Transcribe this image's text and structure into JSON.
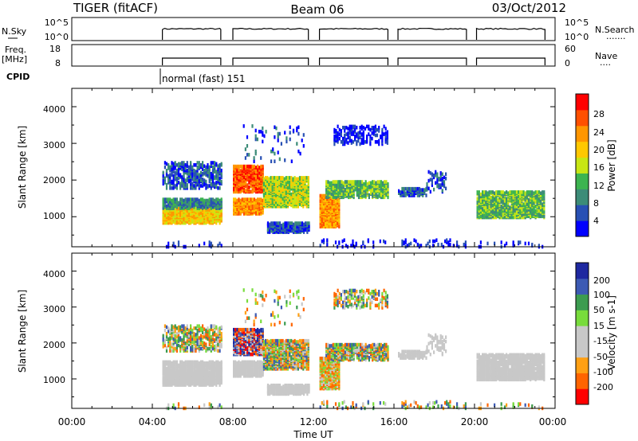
{
  "header": {
    "radar_title": "TIGER (fitACF)",
    "beam_title": "Beam 06",
    "date_title": "03/Oct/2012"
  },
  "strip_panels": {
    "nsky": {
      "label": "N.Sky",
      "left_ticks": [
        "10^5",
        "10^0"
      ],
      "right_ticks": [
        "10^5",
        "10^0"
      ],
      "right_label": "N.Search",
      "right_marker": "......."
    },
    "freq": {
      "label_line1": "Freq.",
      "label_line2": "[MHz]",
      "left_ticks": [
        "18",
        "8"
      ],
      "right_ticks": [
        "60",
        "0"
      ],
      "right_label": "Nave",
      "right_marker": "...."
    },
    "cpid": {
      "label": "CPID",
      "mode_text": "normal (fast) 151"
    }
  },
  "x_axis": {
    "label": "Time UT",
    "ticks": [
      "00:00",
      "04:00",
      "08:00",
      "12:00",
      "16:00",
      "20:00",
      "00:00"
    ],
    "range_hours": [
      0,
      24
    ]
  },
  "colors": {
    "power": [
      "#0000ff",
      "#2850b4",
      "#3c8c78",
      "#3cb450",
      "#c8e614",
      "#ffc800",
      "#ff9600",
      "#ff5000",
      "#ff0000"
    ],
    "velocity": [
      "#ff0000",
      "#ff6400",
      "#ffa014",
      "#c8c8c8",
      "#c8c8c8",
      "#78dc3c",
      "#3c9c50",
      "#3c5ab4",
      "#1e28a0"
    ]
  },
  "chart_data": [
    {
      "type": "heatmap",
      "name": "power-panel",
      "ylabel": "Slant Range [km]",
      "yticks": [
        "1000",
        "2000",
        "3000",
        "4000"
      ],
      "ylim": [
        180,
        4500
      ],
      "colorbar": {
        "label": "Power [dB]",
        "ticks": [
          "4",
          "8",
          "12",
          "16",
          "20",
          "24",
          "28"
        ],
        "range": [
          0,
          32
        ]
      },
      "observing_windows_hours": [
        [
          4.5,
          7.4
        ],
        [
          8.0,
          11.75
        ],
        [
          12.3,
          15.7
        ],
        [
          16.2,
          19.6
        ],
        [
          20.1,
          23.5
        ]
      ]
    },
    {
      "type": "heatmap",
      "name": "velocity-panel",
      "ylabel": "Slant Range [km]",
      "yticks": [
        "1000",
        "2000",
        "3000",
        "4000"
      ],
      "ylim": [
        180,
        4500
      ],
      "colorbar": {
        "label": "Velocity [m s-1]",
        "ticks": [
          "200",
          "100",
          "50",
          "15",
          "-15",
          "-50",
          "-100",
          "-200"
        ]
      }
    }
  ]
}
